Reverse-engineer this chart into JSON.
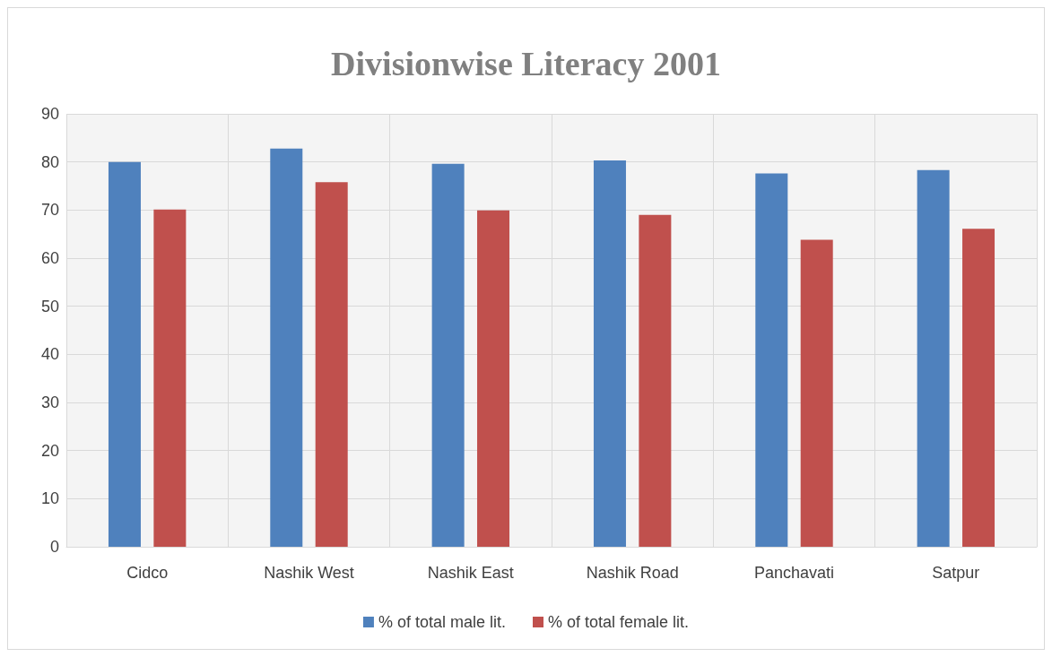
{
  "chart_data": {
    "type": "bar",
    "title": "Divisionwise Literacy 2001",
    "categories": [
      "Cidco",
      "Nashik West",
      "Nashik East",
      "Nashik Road",
      "Panchavati",
      "Satpur"
    ],
    "series": [
      {
        "name": "% of total male lit.",
        "color": "#4f81bd",
        "values": [
          80,
          82.8,
          79.6,
          80.3,
          77.6,
          78.3
        ]
      },
      {
        "name": "% of total female lit.",
        "color": "#c0504d",
        "values": [
          70.1,
          75.8,
          69.9,
          69,
          63.8,
          66.1
        ]
      }
    ],
    "ylim": [
      0,
      90
    ],
    "yticks": [
      0,
      10,
      20,
      30,
      40,
      50,
      60,
      70,
      80,
      90
    ],
    "grid": true,
    "legend": "bottom"
  }
}
